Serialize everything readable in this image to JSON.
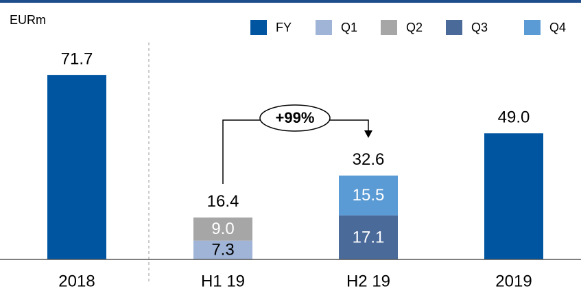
{
  "chart_data": {
    "type": "stacked_bar",
    "y_label": "EURm",
    "annotation": "+99%",
    "categories": [
      "2018",
      "H1 19",
      "H2 19",
      "2019"
    ],
    "series": [
      {
        "name": "FY",
        "color": "#0055a0",
        "label_color": "#000000",
        "values": [
          71.7,
          null,
          null,
          49.0
        ],
        "value_labels": [
          "71.7",
          null,
          null,
          "49.0"
        ]
      },
      {
        "name": "Q1",
        "color": "#9fb4d6",
        "label_color": "#000000",
        "values": [
          null,
          7.3,
          null,
          null
        ]
      },
      {
        "name": "Q2",
        "color": "#a6a6a6",
        "label_color": "#ffffff",
        "values": [
          null,
          9.0,
          null,
          null
        ],
        "value_labels": [
          null,
          "9.0",
          null,
          null
        ]
      },
      {
        "name": "Q3",
        "color": "#4a6a9a",
        "label_color": "#ffffff",
        "values": [
          null,
          null,
          17.1,
          null
        ]
      },
      {
        "name": "Q4",
        "color": "#5b9bd5",
        "label_color": "#ffffff",
        "values": [
          null,
          null,
          15.5,
          null
        ]
      }
    ],
    "totals": [
      null,
      16.4,
      32.6,
      null
    ],
    "ylim": [
      0,
      80
    ]
  }
}
